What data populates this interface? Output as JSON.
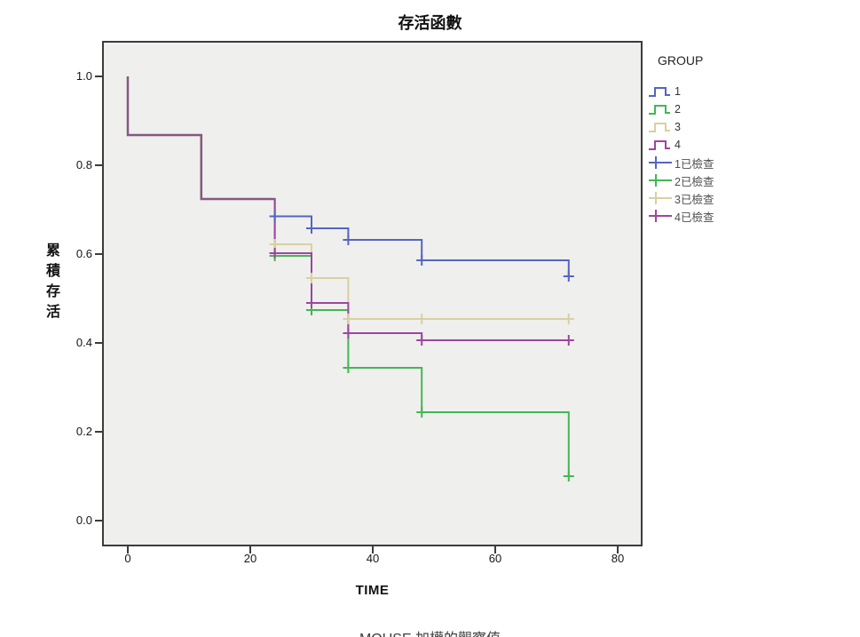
{
  "figure": {
    "title": "存活函數",
    "x_axis": {
      "label": "TIME",
      "ticks": [
        {
          "label": "0",
          "value": 0
        },
        {
          "label": "20",
          "value": 20
        },
        {
          "label": "40",
          "value": 40
        },
        {
          "label": "60",
          "value": 60
        },
        {
          "label": "80",
          "value": 80
        }
      ]
    },
    "y_axis": {
      "label": "累積存活",
      "ticks": [
        {
          "label": "1.0",
          "value": 1.0
        },
        {
          "label": "0.8",
          "value": 0.8
        },
        {
          "label": "0.6",
          "value": 0.6
        },
        {
          "label": "0.4",
          "value": 0.4
        },
        {
          "label": "0.2",
          "value": 0.2
        },
        {
          "label": "0.0",
          "value": 0.0
        }
      ]
    },
    "legend": {
      "title": "GROUP",
      "items": [
        {
          "label": "1",
          "color": "#5565c1",
          "type": "line"
        },
        {
          "label": "2",
          "color": "#44b655",
          "type": "line"
        },
        {
          "label": "3",
          "color": "#d8d0a2",
          "type": "line"
        },
        {
          "label": "4",
          "color": "#9c469e",
          "type": "line"
        },
        {
          "label": "1已檢查",
          "color": "#5565c1",
          "type": "censored"
        },
        {
          "label": "2已檢查",
          "color": "#44b655",
          "type": "censored"
        },
        {
          "label": "3已檢查",
          "color": "#d8d0a2",
          "type": "censored"
        },
        {
          "label": "4已檢查",
          "color": "#9c469e",
          "type": "censored"
        }
      ]
    },
    "footnote": "MOUSE 加權的觀察值"
  },
  "chart_data": {
    "type": "line",
    "subtype": "kaplan-meier-step",
    "title": "存活函數",
    "xlabel": "TIME",
    "ylabel": "累積存活",
    "xlim": [
      -4.2,
      84.1
    ],
    "ylim": [
      -0.058,
      1.08
    ],
    "x_ticks": [
      0,
      20,
      40,
      60,
      80
    ],
    "y_ticks": [
      0.0,
      0.2,
      0.4,
      0.6,
      0.8,
      1.0
    ],
    "grid": false,
    "legend_position": "right",
    "plot_background": "#efefed",
    "frame_color": "#3c3c3c",
    "overlap_color": "#84597f",
    "series": [
      {
        "name": "1",
        "color": "#5565c1",
        "points": [
          [
            0,
            1.0
          ],
          [
            0,
            0.868
          ],
          [
            12,
            0.868
          ],
          [
            12,
            0.724
          ],
          [
            24,
            0.724
          ],
          [
            24,
            0.685
          ],
          [
            30,
            0.685
          ],
          [
            30,
            0.658
          ],
          [
            36,
            0.658
          ],
          [
            36,
            0.632
          ],
          [
            48,
            0.632
          ],
          [
            48,
            0.586
          ],
          [
            72,
            0.586
          ],
          [
            72,
            0.55
          ]
        ],
        "censored": [
          [
            24,
            0.685
          ],
          [
            30,
            0.658
          ],
          [
            36,
            0.632
          ],
          [
            48,
            0.586
          ],
          [
            72,
            0.55
          ]
        ]
      },
      {
        "name": "2",
        "color": "#44b655",
        "points": [
          [
            0,
            1.0
          ],
          [
            0,
            0.868
          ],
          [
            12,
            0.868
          ],
          [
            12,
            0.724
          ],
          [
            24,
            0.724
          ],
          [
            24,
            0.596
          ],
          [
            30,
            0.596
          ],
          [
            30,
            0.474
          ],
          [
            36,
            0.474
          ],
          [
            36,
            0.344
          ],
          [
            48,
            0.344
          ],
          [
            48,
            0.244
          ],
          [
            72,
            0.244
          ],
          [
            72,
            0.1
          ]
        ],
        "censored": [
          [
            24,
            0.596
          ],
          [
            30,
            0.474
          ],
          [
            36,
            0.344
          ],
          [
            48,
            0.244
          ],
          [
            72,
            0.1
          ]
        ]
      },
      {
        "name": "3",
        "color": "#d8d0a2",
        "points": [
          [
            0,
            1.0
          ],
          [
            0,
            0.868
          ],
          [
            12,
            0.868
          ],
          [
            12,
            0.724
          ],
          [
            24,
            0.724
          ],
          [
            24,
            0.622
          ],
          [
            30,
            0.622
          ],
          [
            30,
            0.546
          ],
          [
            36,
            0.546
          ],
          [
            36,
            0.454
          ],
          [
            72,
            0.454
          ]
        ],
        "censored": [
          [
            24,
            0.622
          ],
          [
            30,
            0.546
          ],
          [
            36,
            0.454
          ],
          [
            48,
            0.454
          ],
          [
            72,
            0.454
          ]
        ]
      },
      {
        "name": "4",
        "color": "#9c469e",
        "points": [
          [
            0,
            1.0
          ],
          [
            0,
            0.868
          ],
          [
            12,
            0.868
          ],
          [
            12,
            0.724
          ],
          [
            24,
            0.724
          ],
          [
            24,
            0.602
          ],
          [
            30,
            0.602
          ],
          [
            30,
            0.49
          ],
          [
            36,
            0.49
          ],
          [
            36,
            0.422
          ],
          [
            48,
            0.422
          ],
          [
            48,
            0.406
          ],
          [
            72,
            0.406
          ]
        ],
        "censored": [
          [
            24,
            0.602
          ],
          [
            30,
            0.49
          ],
          [
            36,
            0.422
          ],
          [
            48,
            0.406
          ],
          [
            72,
            0.406
          ]
        ]
      }
    ]
  }
}
